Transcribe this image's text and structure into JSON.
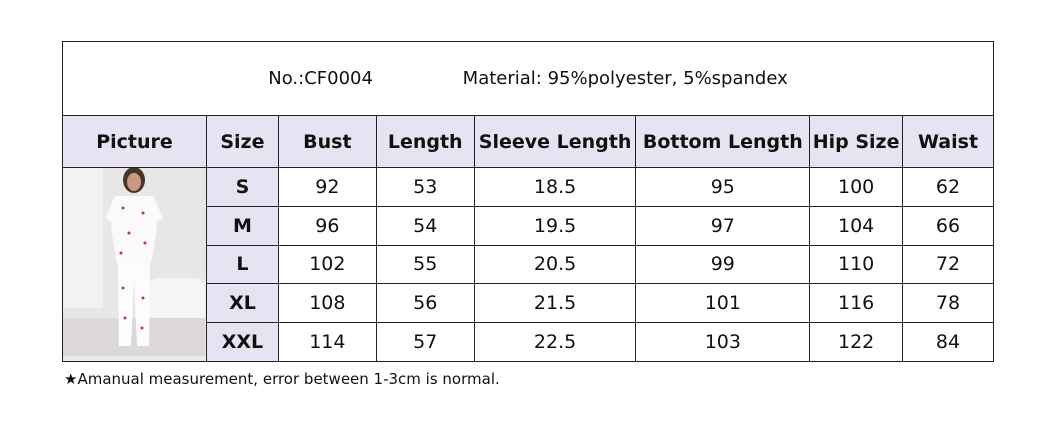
{
  "title": {
    "number": "No.:CF0004",
    "material": "Material: 95%polyester, 5%spandex"
  },
  "headers": [
    "Picture",
    "Size",
    "Bust",
    "Length",
    "Sleeve Length",
    "Bottom Length",
    "Hip Size",
    "Waist"
  ],
  "rows": [
    {
      "size": "S",
      "bust": "92",
      "length": "53",
      "sleeve": "18.5",
      "bottom": "95",
      "hip": "100",
      "waist": "62"
    },
    {
      "size": "M",
      "bust": "96",
      "length": "54",
      "sleeve": "19.5",
      "bottom": "97",
      "hip": "104",
      "waist": "66"
    },
    {
      "size": "L",
      "bust": "102",
      "length": "55",
      "sleeve": "20.5",
      "bottom": "99",
      "hip": "110",
      "waist": "72"
    },
    {
      "size": "XL",
      "bust": "108",
      "length": "56",
      "sleeve": "21.5",
      "bottom": "101",
      "hip": "116",
      "waist": "78"
    },
    {
      "size": "XXL",
      "bust": "114",
      "length": "57",
      "sleeve": "22.5",
      "bottom": "103",
      "hip": "122",
      "waist": "84"
    }
  ],
  "note": "★Amanual measurement, error between 1-3cm is normal.",
  "colors": {
    "header_bg": "#e6e4f2",
    "border": "#222222"
  }
}
